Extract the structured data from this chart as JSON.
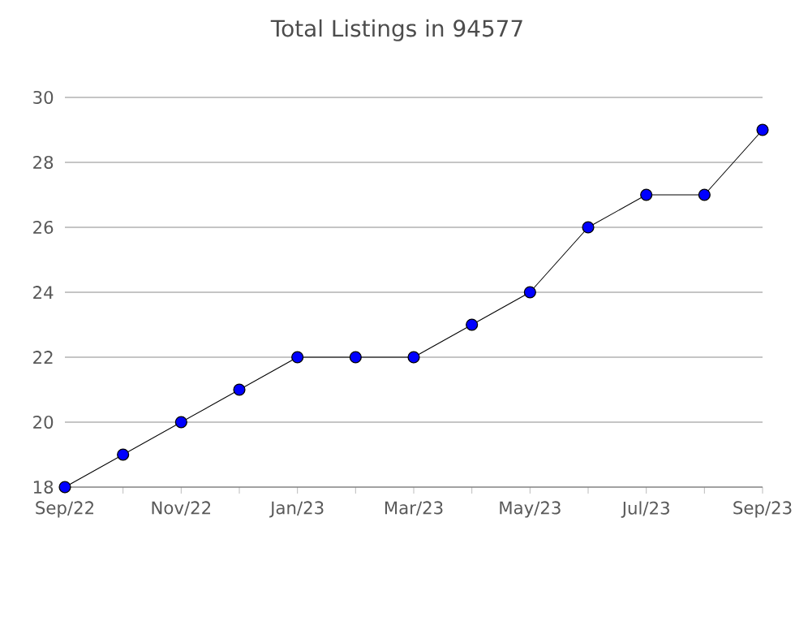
{
  "chart_data": {
    "type": "line",
    "title": "Total Listings in 94577",
    "categories": [
      "Sep/22",
      null,
      "Nov/22",
      null,
      "Jan/23",
      null,
      "Mar/23",
      null,
      "May/23",
      null,
      "Jul/23",
      null,
      "Sep/23"
    ],
    "series": [
      {
        "color": "#0000ff",
        "values": [
          18,
          19,
          20,
          21,
          22,
          22,
          22,
          23,
          24,
          26,
          27,
          27,
          29
        ]
      }
    ],
    "ylim": [
      18,
      30
    ],
    "yticks": [
      18,
      20,
      22,
      24,
      26,
      28,
      30
    ],
    "grid": "y",
    "marker": "circle",
    "line_style": "solid"
  }
}
